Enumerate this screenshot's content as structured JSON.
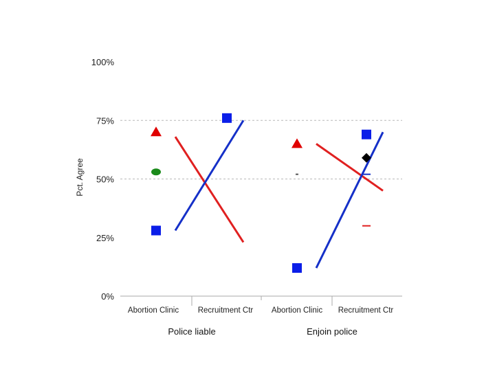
{
  "chart_data": {
    "type": "scatter",
    "title": "",
    "ylabel": "Pct. Agree",
    "ylim": [
      0,
      100
    ],
    "y_ticks": [
      "0%",
      "25%",
      "50%",
      "75%",
      "100%"
    ],
    "grid": "horizontal dashed at 50% and 75%",
    "panels": [
      {
        "group_label": "Police liable",
        "categories": [
          "Abortion Clinic",
          "Recruitment Ctr"
        ],
        "points": [
          {
            "marker": "triangle",
            "color": "#e00000",
            "category": "Abortion Clinic",
            "y": 70
          },
          {
            "marker": "circle",
            "color": "#1a8a1a",
            "category": "Abortion Clinic",
            "y": 53
          },
          {
            "marker": "square",
            "color": "#0b1ee8",
            "category": "Abortion Clinic",
            "y": 28
          },
          {
            "marker": "square",
            "color": "#0b1ee8",
            "category": "Recruitment Ctr",
            "y": 76
          }
        ],
        "lines": [
          {
            "color": "#e02020",
            "from": {
              "category": "Abortion Clinic",
              "y": 68
            },
            "to": {
              "category": "Recruitment Ctr",
              "y": 23
            }
          },
          {
            "color": "#1530c8",
            "from": {
              "category": "Abortion Clinic",
              "y": 28
            },
            "to": {
              "category": "Recruitment Ctr",
              "y": 75
            }
          }
        ]
      },
      {
        "group_label": "Enjoin police",
        "categories": [
          "Abortion Clinic",
          "Recruitment Ctr"
        ],
        "points": [
          {
            "marker": "triangle",
            "color": "#e00000",
            "category": "Abortion Clinic",
            "y": 65
          },
          {
            "marker": "square",
            "color": "#0b1ee8",
            "category": "Abortion Clinic",
            "y": 12
          },
          {
            "marker": "square",
            "color": "#0b1ee8",
            "category": "Recruitment Ctr",
            "y": 69
          },
          {
            "marker": "diamond",
            "color": "#000000",
            "category": "Recruitment Ctr",
            "y": 59
          },
          {
            "marker": "dash",
            "color": "#1530c8",
            "category": "Recruitment Ctr",
            "y": 52
          },
          {
            "marker": "dash",
            "color": "#e02020",
            "category": "Recruitment Ctr",
            "y": 30
          },
          {
            "marker": "dash",
            "color": "#555555",
            "category": "Abortion Clinic",
            "y": 52
          }
        ],
        "lines": [
          {
            "color": "#e02020",
            "from": {
              "category": "Abortion Clinic",
              "y": 65
            },
            "to": {
              "category": "Recruitment Ctr",
              "y": 45
            }
          },
          {
            "color": "#1530c8",
            "from": {
              "category": "Abortion Clinic",
              "y": 12
            },
            "to": {
              "category": "Recruitment Ctr",
              "y": 70
            }
          }
        ]
      }
    ]
  }
}
